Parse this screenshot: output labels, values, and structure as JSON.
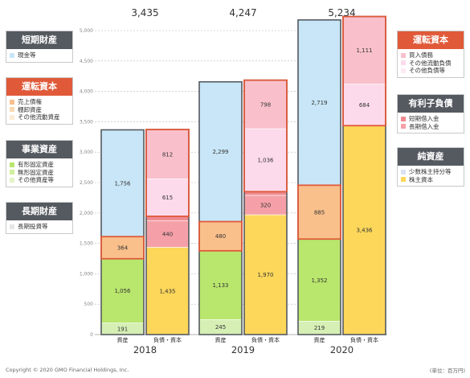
{
  "chart_data": {
    "type": "bar",
    "stacked": true,
    "unit_note": "(単位：百万円)",
    "copyright": "Copyright © 2020 GMO Financial Holdings, Inc.",
    "ylim": [
      0,
      5000
    ],
    "yticks": [
      0,
      500,
      1000,
      1500,
      2000,
      2500,
      3000,
      3500,
      4000,
      4500,
      5000
    ],
    "ytick_labels": [
      "0",
      "500",
      "1,000",
      "1,500",
      "2,000",
      "2,500",
      "3,000",
      "3,500",
      "4,000",
      "4,500",
      "5,000"
    ],
    "categories": [
      "2018",
      "2019",
      "2020"
    ],
    "bar_labels": [
      "資産",
      "負債・資本"
    ],
    "year_totals": [
      "3,435",
      "4,247",
      "5,234"
    ],
    "groups": [
      {
        "year": "2018",
        "assets": [
          {
            "name": "事業資産",
            "value": 191,
            "label": "191",
            "color": "#d6efb5"
          },
          {
            "name": "事業資産",
            "value": 1056,
            "label": "1,056",
            "color": "#b9e66d"
          },
          {
            "name": "運転資本",
            "value": 364,
            "label": "364",
            "color": "#f9c08c"
          },
          {
            "name": "短期財産",
            "value": 1756,
            "label": "1,756",
            "color": "#c8e6f7"
          }
        ],
        "liabilities": [
          {
            "name": "純資産",
            "value": 1435,
            "label": "1,435",
            "color": "#fcd75a"
          },
          {
            "name": "有利子負債",
            "value": 440,
            "label": "440",
            "color": "#f5a0a8"
          },
          {
            "name": "有利子負債",
            "value": 70,
            "label": "",
            "color": "#f08a90"
          },
          {
            "name": "運転資本",
            "value": 615,
            "label": "615",
            "color": "#fcdaeb"
          },
          {
            "name": "運転資本",
            "value": 812,
            "label": "812",
            "color": "#f9c0cc"
          }
        ]
      },
      {
        "year": "2019",
        "assets": [
          {
            "name": "事業資産",
            "value": 245,
            "label": "245",
            "color": "#d6efb5"
          },
          {
            "name": "事業資産",
            "value": 1133,
            "label": "1,133",
            "color": "#b9e66d"
          },
          {
            "name": "運転資本",
            "value": 480,
            "label": "480",
            "color": "#f9c08c"
          },
          {
            "name": "短期財産",
            "value": 2299,
            "label": "2,299",
            "color": "#c8e6f7"
          }
        ],
        "liabilities": [
          {
            "name": "純資産",
            "value": 1970,
            "label": "1,970",
            "color": "#fcd75a"
          },
          {
            "name": "有利子負債",
            "value": 320,
            "label": "320",
            "color": "#f5a0a8"
          },
          {
            "name": "有利子負債",
            "value": 60,
            "label": "",
            "color": "#f08a90"
          },
          {
            "name": "運転資本",
            "value": 1036,
            "label": "1,036",
            "color": "#fcdaeb"
          },
          {
            "name": "運転資本",
            "value": 798,
            "label": "798",
            "color": "#f9c0cc"
          }
        ]
      },
      {
        "year": "2020",
        "assets": [
          {
            "name": "事業資産",
            "value": 219,
            "label": "219",
            "color": "#d6efb5"
          },
          {
            "name": "事業資産",
            "value": 1352,
            "label": "1,352",
            "color": "#b9e66d"
          },
          {
            "name": "運転資本",
            "value": 885,
            "label": "885",
            "color": "#f9c08c"
          },
          {
            "name": "短期財産",
            "value": 2719,
            "label": "2,719",
            "color": "#c8e6f7"
          }
        ],
        "liabilities": [
          {
            "name": "純資産",
            "value": 3436,
            "label": "3,436",
            "color": "#fcd75a"
          },
          {
            "name": "運転資本",
            "value": 684,
            "label": "684",
            "color": "#fcdaeb"
          },
          {
            "name": "運転資本",
            "value": 1111,
            "label": "1,111",
            "color": "#f9c0cc"
          }
        ]
      }
    ],
    "highlight_color": "#e05a3a"
  },
  "legend_left": [
    {
      "title": "短期財産",
      "head_color": "#555a60",
      "items": [
        {
          "label": "現金等",
          "color": "#c8e6f7"
        }
      ]
    },
    {
      "title": "運転資本",
      "head_color": "#e05a3a",
      "items": [
        {
          "label": "売上債権",
          "color": "#f9c08c"
        },
        {
          "label": "棚卸資産",
          "color": "#fbd9b2"
        },
        {
          "label": "その他流動資産",
          "color": "#fdebd6"
        }
      ]
    },
    {
      "title": "事業資産",
      "head_color": "#555a60",
      "items": [
        {
          "label": "有形固定資産",
          "color": "#b9e66d"
        },
        {
          "label": "無形固定資産",
          "color": "#d2ef9c"
        },
        {
          "label": "その他資産等",
          "color": "#e3f4c6"
        }
      ]
    },
    {
      "title": "長期財産",
      "head_color": "#555a60",
      "items": [
        {
          "label": "長期投資等",
          "color": "#e6e6e6"
        }
      ]
    }
  ],
  "legend_right": [
    {
      "title": "運転資本",
      "head_color": "#e05a3a",
      "items": [
        {
          "label": "買入債務",
          "color": "#f9c0cc"
        },
        {
          "label": "その他流動負債",
          "color": "#fcdaeb"
        },
        {
          "label": "その他負債等",
          "color": "#fdeaf2"
        }
      ]
    },
    {
      "title": "有利子負債",
      "head_color": "#555a60",
      "items": [
        {
          "label": "短期借入金",
          "color": "#f08a90"
        },
        {
          "label": "長期借入金",
          "color": "#f5a0a8"
        }
      ]
    },
    {
      "title": "純資産",
      "head_color": "#555a60",
      "items": [
        {
          "label": "少数株主持分等",
          "color": "#d9e3f5"
        },
        {
          "label": "株主資本",
          "color": "#fcd75a"
        }
      ]
    }
  ]
}
